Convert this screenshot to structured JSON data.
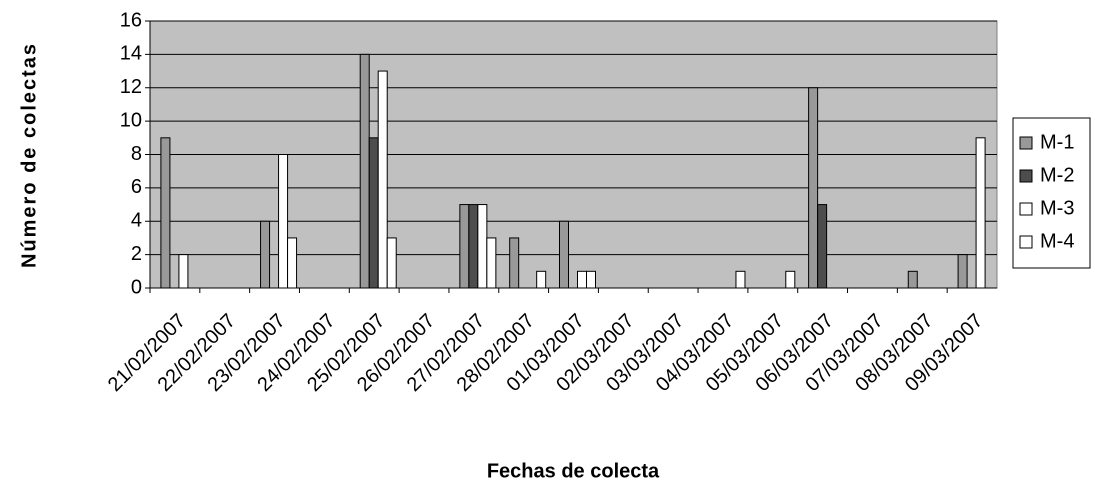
{
  "chart_data": {
    "type": "bar",
    "ylabel": "Número de colectas",
    "xlabel": "Fechas de colecta",
    "categories": [
      "21/02/2007",
      "22/02/2007",
      "23/02/2007",
      "24/02/2007",
      "25/02/2007",
      "26/02/2007",
      "27/02/2007",
      "28/02/2007",
      "01/03/2007",
      "02/03/2007",
      "03/03/2007",
      "04/03/2007",
      "05/03/2007",
      "06/03/2007",
      "07/03/2007",
      "08/03/2007",
      "09/03/2007"
    ],
    "series": [
      {
        "name": "M-1",
        "color": "#999999",
        "values": [
          9,
          0,
          4,
          0,
          14,
          0,
          5,
          3,
          4,
          0,
          0,
          0,
          0,
          12,
          0,
          1,
          2
        ]
      },
      {
        "name": "M-2",
        "color": "#4d4d4d",
        "values": [
          0,
          0,
          0,
          0,
          9,
          0,
          5,
          0,
          0,
          0,
          0,
          0,
          0,
          5,
          0,
          0,
          0
        ]
      },
      {
        "name": "M-3",
        "color": "#ffffff",
        "values": [
          2,
          0,
          8,
          0,
          13,
          0,
          5,
          0,
          1,
          0,
          0,
          0,
          0,
          0,
          0,
          0,
          9
        ]
      },
      {
        "name": "M-4",
        "color": "#ffffff",
        "values": [
          0,
          0,
          3,
          0,
          3,
          0,
          3,
          1,
          1,
          0,
          0,
          1,
          1,
          0,
          0,
          0,
          0
        ]
      }
    ],
    "ylim": [
      0,
      16
    ],
    "yticks": [
      0,
      2,
      4,
      6,
      8,
      10,
      12,
      14,
      16
    ],
    "grid": true,
    "legend": "right"
  }
}
